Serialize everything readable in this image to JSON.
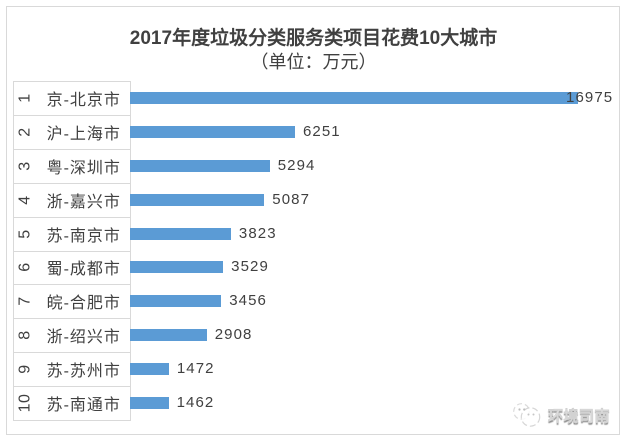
{
  "page": {
    "background": "#ffffff"
  },
  "chart": {
    "title": "2017年度垃圾分类服务类项目花费10大城市",
    "subtitle": "（单位：万元）",
    "watermark": {
      "text": "环境司南",
      "icon": "compass-logo-icon"
    },
    "colors": {
      "bar": "#5b9bd5",
      "text": "#404040",
      "grid": "#d9d9d9",
      "border": "#d9d9d9",
      "watermark_stroke": "#aaaaaa"
    }
  },
  "chart_data": {
    "type": "bar",
    "orientation": "horizontal",
    "title": "2017年度垃圾分类服务类项目花费10大城市",
    "subtitle": "（单位：万元）",
    "unit": "万元",
    "legend": false,
    "value_axis_visible": false,
    "ranks": [
      "1",
      "2",
      "3",
      "4",
      "5",
      "6",
      "7",
      "8",
      "9",
      "10"
    ],
    "categories": [
      "京-北京市",
      "沪-上海市",
      "粤-深圳市",
      "浙-嘉兴市",
      "苏-南京市",
      "蜀-成都市",
      "皖-合肥市",
      "浙-绍兴市",
      "苏-苏州市",
      "苏-南通市"
    ],
    "values": [
      16975,
      6251,
      5294,
      5087,
      3823,
      3529,
      3456,
      2908,
      1472,
      1462
    ],
    "data_labels": [
      "16975",
      "6251",
      "5294",
      "5087",
      "3823",
      "3529",
      "3456",
      "2908",
      "1472",
      "1462"
    ],
    "bar_color": "#5b9bd5"
  }
}
